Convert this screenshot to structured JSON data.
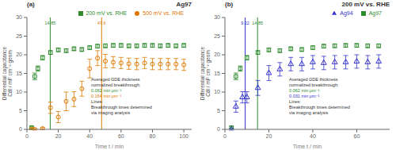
{
  "chart_data": [
    {
      "type": "scatter",
      "title": "Ag97",
      "subtitle": "(a)",
      "xlabel": "Time t / min",
      "ylabel": "Differential capacitance Cdl / mF cm⁻² geom",
      "xlim": [
        0,
        105
      ],
      "xticks": [
        0,
        20,
        40,
        60,
        80,
        100
      ],
      "ylim": [
        0,
        30
      ],
      "yticks": [
        0,
        5,
        10,
        15,
        20,
        25,
        30
      ],
      "grid": false,
      "legend": "upper right",
      "vlines": [
        {
          "x": 14.85,
          "color": "#2e8b2e"
        },
        {
          "x": 47.6,
          "color": "#e07800"
        }
      ],
      "series": [
        {
          "name": "200 mV vs. RHE",
          "color": "#2e8b2e",
          "marker": "square",
          "x": [
            3,
            5,
            7,
            10,
            15,
            20,
            25,
            30,
            35,
            40,
            45,
            50,
            55,
            60,
            65,
            70,
            75,
            80,
            85,
            90,
            95,
            100
          ],
          "values": [
            0.5,
            14.2,
            16.3,
            19.2,
            20.6,
            21.3,
            21.1,
            21.6,
            21.4,
            21.9,
            22.3,
            22.4,
            22.5,
            22.5,
            22.4,
            22.4,
            22.5,
            22.5,
            22.4,
            22.5,
            22.4,
            22.5
          ],
          "errors": [
            0.3,
            0.9,
            0.7,
            0.6,
            0.5,
            0.5,
            0.5,
            0.5,
            0.5,
            0.5,
            0.5,
            0.5,
            0.5,
            0.5,
            0.5,
            0.5,
            0.5,
            0.5,
            0.5,
            0.5,
            0.5,
            0.5
          ]
        },
        {
          "name": "500 mV vs. RHE",
          "color": "#e07800",
          "marker": "circle",
          "x": [
            3,
            5,
            10,
            15,
            20,
            25,
            30,
            35,
            40,
            45,
            50,
            55,
            60,
            65,
            70,
            75,
            80,
            85,
            90,
            95,
            100
          ],
          "values": [
            0.1,
            0.0,
            0.2,
            5.8,
            3.3,
            7.5,
            8.1,
            10.9,
            16.3,
            19.1,
            18.3,
            18.0,
            17.8,
            17.6,
            17.5,
            17.8,
            17.5,
            17.5,
            17.5,
            17.5,
            17.3
          ],
          "errors": [
            0.2,
            0.2,
            0.3,
            1.5,
            1.5,
            2.5,
            2.0,
            2.0,
            2.5,
            2.0,
            1.8,
            1.5,
            1.5,
            1.5,
            1.5,
            1.5,
            1.5,
            1.5,
            1.5,
            1.5,
            1.5
          ]
        }
      ],
      "annotations": [
        {
          "text": "Averaged GDE thickness"
        },
        {
          "text": "normalized breakthrough:"
        },
        {
          "text": "0.062 min μm⁻¹",
          "color": "#2e8b2e"
        },
        {
          "text": "0.164 min μm⁻¹",
          "color": "#e07800"
        },
        {
          "text": "Lines:"
        },
        {
          "text": "Breakthrough times determined"
        },
        {
          "text": "via imaging analysis"
        }
      ]
    },
    {
      "type": "scatter",
      "title": "200 mV vs. RHE",
      "subtitle": "(b)",
      "xlabel": "Time t / min",
      "ylabel": "Differential capacitance Cdl / mF cm⁻² geom",
      "xlim": [
        0,
        75
      ],
      "xticks": [
        0,
        20,
        40,
        60
      ],
      "ylim": [
        0,
        30
      ],
      "yticks": [
        0,
        5,
        10,
        15,
        20,
        25,
        30
      ],
      "grid": false,
      "legend": "upper right",
      "vlines": [
        {
          "x": 9.22,
          "color": "#3535cc"
        },
        {
          "x": 14.85,
          "color": "#2e8b2e"
        }
      ],
      "series": [
        {
          "name": "Ag97",
          "color": "#2e8b2e",
          "marker": "square",
          "x": [
            3,
            5,
            7,
            10,
            15,
            20,
            25,
            30,
            35,
            40,
            45,
            50,
            55,
            60,
            65,
            70
          ],
          "values": [
            0.5,
            14.2,
            16.3,
            19.2,
            20.6,
            21.3,
            21.1,
            21.6,
            21.4,
            21.9,
            22.3,
            22.4,
            22.5,
            22.5,
            22.4,
            22.4
          ],
          "errors": [
            0.3,
            0.9,
            0.7,
            0.6,
            0.5,
            0.5,
            0.5,
            0.5,
            0.5,
            0.5,
            0.5,
            0.5,
            0.5,
            0.5,
            0.5,
            0.5
          ]
        },
        {
          "name": "Ag94",
          "color": "#3535cc",
          "marker": "triangle",
          "x": [
            3,
            5,
            8,
            10,
            15,
            20,
            25,
            30,
            35,
            40,
            45,
            50,
            55,
            60,
            65,
            70
          ],
          "values": [
            0.0,
            6.1,
            8.6,
            8.6,
            11.1,
            15.1,
            16.1,
            17.5,
            17.5,
            18.0,
            17.8,
            18.0,
            18.0,
            18.2,
            18.0,
            18.2
          ],
          "errors": [
            0.2,
            1.5,
            1.5,
            1.5,
            2.0,
            2.0,
            1.8,
            1.8,
            1.8,
            1.8,
            1.8,
            1.8,
            1.8,
            1.8,
            1.8,
            1.8
          ]
        }
      ],
      "annotations": [
        {
          "text": "Averaged GDE thickness"
        },
        {
          "text": "normalized breakthrough:"
        },
        {
          "text": "0.062 min μm⁻¹",
          "color": "#2e8b2e"
        },
        {
          "text": "0.031 min μm⁻¹",
          "color": "#3535cc"
        },
        {
          "text": "Lines:"
        },
        {
          "text": "Breakthrough times determined"
        },
        {
          "text": "via imaging analysis"
        }
      ]
    }
  ]
}
